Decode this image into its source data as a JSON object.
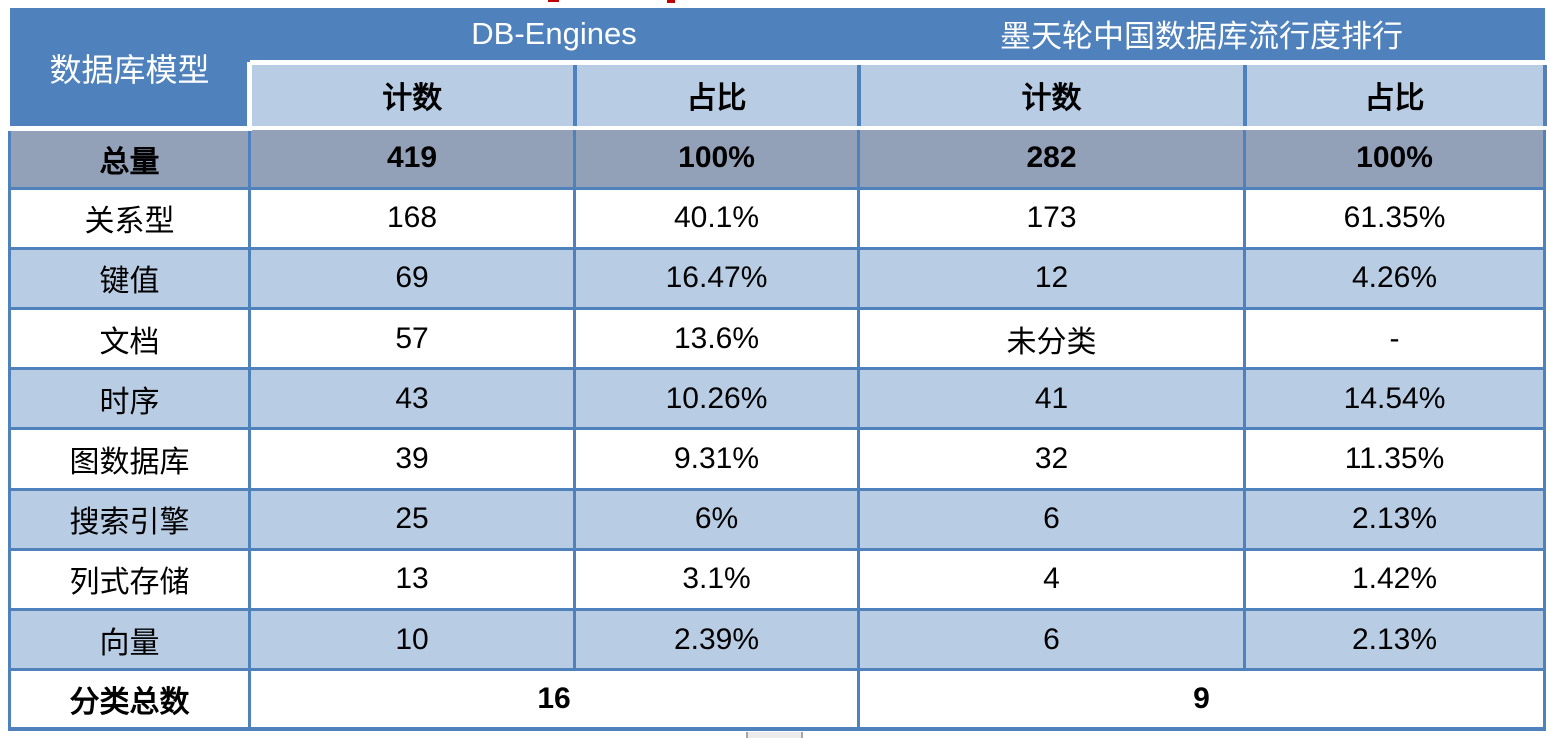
{
  "table": {
    "corner_header": "数据库模型",
    "groups": [
      {
        "label": "DB-Engines",
        "subheaders": [
          "计数",
          "占比"
        ]
      },
      {
        "label": "墨天轮中国数据库流行度排行",
        "subheaders": [
          "计数",
          "占比"
        ]
      }
    ],
    "total_row": {
      "label": "总量",
      "values": [
        "419",
        "100%",
        "282",
        "100%"
      ]
    },
    "rows": [
      {
        "label": "关系型",
        "values": [
          "168",
          "40.1%",
          "173",
          "61.35%"
        ]
      },
      {
        "label": "键值",
        "values": [
          "69",
          "16.47%",
          "12",
          "4.26%"
        ]
      },
      {
        "label": "文档",
        "values": [
          "57",
          "13.6%",
          "未分类",
          "-"
        ]
      },
      {
        "label": "时序",
        "values": [
          "43",
          "10.26%",
          "41",
          "14.54%"
        ]
      },
      {
        "label": "图数据库",
        "values": [
          "39",
          "9.31%",
          "32",
          "11.35%"
        ]
      },
      {
        "label": "搜索引擎",
        "values": [
          "25",
          "6%",
          "6",
          "2.13%"
        ]
      },
      {
        "label": "列式存储",
        "values": [
          "13",
          "3.1%",
          "4",
          "1.42%"
        ]
      },
      {
        "label": "向量",
        "values": [
          "10",
          "2.39%",
          "6",
          "2.13%"
        ]
      }
    ],
    "footer_row": {
      "label": "分类总数",
      "values": [
        "16",
        "9"
      ]
    }
  },
  "chart_data": {
    "type": "table",
    "title": "数据库模型 — DB-Engines 与 墨天轮中国数据库流行度排行 对比",
    "columns": [
      "数据库模型",
      "DB-Engines 计数",
      "DB-Engines 占比",
      "墨天轮中国数据库流行度排行 计数",
      "墨天轮中国数据库流行度排行 占比"
    ],
    "rows": [
      [
        "总量",
        "419",
        "100%",
        "282",
        "100%"
      ],
      [
        "关系型",
        "168",
        "40.1%",
        "173",
        "61.35%"
      ],
      [
        "键值",
        "69",
        "16.47%",
        "12",
        "4.26%"
      ],
      [
        "文档",
        "57",
        "13.6%",
        "未分类",
        "-"
      ],
      [
        "时序",
        "43",
        "10.26%",
        "41",
        "14.54%"
      ],
      [
        "图数据库",
        "39",
        "9.31%",
        "32",
        "11.35%"
      ],
      [
        "搜索引擎",
        "25",
        "6%",
        "6",
        "2.13%"
      ],
      [
        "列式存储",
        "13",
        "3.1%",
        "4",
        "1.42%"
      ],
      [
        "向量",
        "10",
        "2.39%",
        "6",
        "2.13%"
      ],
      [
        "分类总数",
        "16",
        "",
        "9",
        ""
      ]
    ]
  },
  "colors": {
    "header_blue": "#4F81BD",
    "subheader_light_blue": "#B8CCE4",
    "total_row_gray_blue": "#92A0B8",
    "alt_row_light_blue": "#B8CCE4",
    "row_white": "#FFFFFF",
    "border_blue": "#4F81BD",
    "header_text": "#FFFFFF",
    "body_text": "#000000",
    "artifact_red": "#C00000"
  }
}
